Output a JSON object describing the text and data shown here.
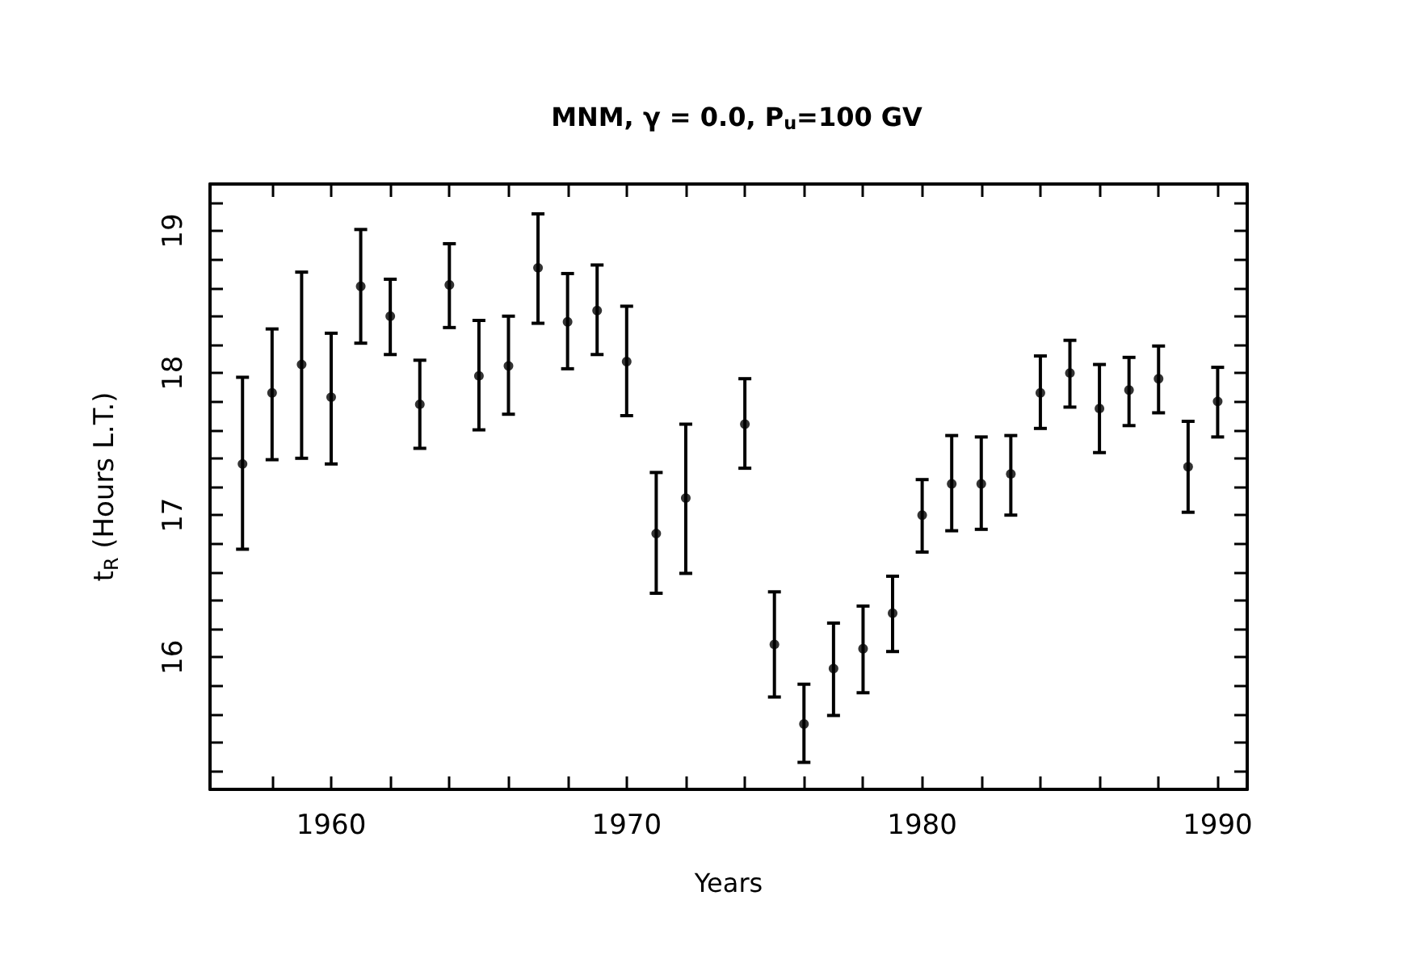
{
  "chart_data": {
    "type": "scatter",
    "title": "MNM, γ = 0.0, P$_{u}$=100 GV",
    "xlabel": "Years",
    "ylabel": "t$_{R}$ (Hours L.T.)",
    "x": [
      1957,
      1958,
      1959,
      1960,
      1961,
      1962,
      1963,
      1964,
      1965,
      1966,
      1967,
      1968,
      1969,
      1970,
      1971,
      1972,
      1974,
      1975,
      1976,
      1977,
      1978,
      1979,
      1980,
      1981,
      1982,
      1983,
      1984,
      1985,
      1986,
      1987,
      1988,
      1989,
      1990
    ],
    "values": [
      17.36,
      17.86,
      18.06,
      17.83,
      18.61,
      18.4,
      17.78,
      18.62,
      17.98,
      18.05,
      18.74,
      18.36,
      18.44,
      18.08,
      16.87,
      17.12,
      17.64,
      16.09,
      15.53,
      15.92,
      16.06,
      16.31,
      17.0,
      17.22,
      17.22,
      17.29,
      17.86,
      18.0,
      17.75,
      17.88,
      17.96,
      17.34,
      17.8
    ],
    "errors": [
      [
        16.76,
        17.97
      ],
      [
        17.39,
        18.31
      ],
      [
        17.4,
        18.71
      ],
      [
        17.36,
        18.28
      ],
      [
        18.21,
        19.01
      ],
      [
        18.13,
        18.66
      ],
      [
        17.47,
        18.09
      ],
      [
        18.32,
        18.91
      ],
      [
        17.6,
        18.37
      ],
      [
        17.71,
        18.4
      ],
      [
        18.35,
        19.12
      ],
      [
        18.03,
        18.7
      ],
      [
        18.13,
        18.76
      ],
      [
        17.7,
        18.47
      ],
      [
        16.45,
        17.3
      ],
      [
        16.59,
        17.64
      ],
      [
        17.33,
        17.96
      ],
      [
        15.72,
        16.46
      ],
      [
        15.26,
        15.81
      ],
      [
        15.59,
        16.24
      ],
      [
        15.75,
        16.36
      ],
      [
        16.04,
        16.57
      ],
      [
        16.74,
        17.25
      ],
      [
        16.89,
        17.56
      ],
      [
        16.9,
        17.55
      ],
      [
        17.0,
        17.56
      ],
      [
        17.61,
        18.12
      ],
      [
        17.76,
        18.23
      ],
      [
        17.44,
        18.06
      ],
      [
        17.63,
        18.11
      ],
      [
        17.72,
        18.19
      ],
      [
        17.02,
        17.66
      ],
      [
        17.55,
        18.04
      ]
    ],
    "color": "#000000",
    "marker": "circle",
    "grid": false,
    "legend": false,
    "xlim": [
      1955.9,
      1991
    ],
    "xticks": [
      {
        "value": 1958,
        "label": null
      },
      1960,
      {
        "value": 1962,
        "label": null
      },
      {
        "value": 1964,
        "label": null
      },
      {
        "value": 1966,
        "label": null
      },
      {
        "value": 1968,
        "label": null
      },
      1970,
      {
        "value": 1972,
        "label": null
      },
      {
        "value": 1974,
        "label": null
      },
      {
        "value": 1976,
        "label": null
      },
      {
        "value": 1978,
        "label": null
      },
      1980,
      {
        "value": 1982,
        "label": null
      },
      {
        "value": 1984,
        "label": null
      },
      {
        "value": 1986,
        "label": null
      },
      {
        "value": 1988,
        "label": null
      },
      1990
    ],
    "ylim": [
      15.07,
      19.33
    ],
    "yticks": [
      {
        "value": 15.2,
        "label": null
      },
      {
        "value": 15.4,
        "label": null
      },
      {
        "value": 15.6,
        "label": null
      },
      {
        "value": 15.8,
        "label": null
      },
      16,
      {
        "value": 16.2,
        "label": null
      },
      {
        "value": 16.4,
        "label": null
      },
      {
        "value": 16.6,
        "label": null
      },
      {
        "value": 16.8,
        "label": null
      },
      17,
      {
        "value": 17.2,
        "label": null
      },
      {
        "value": 17.4,
        "label": null
      },
      {
        "value": 17.6,
        "label": null
      },
      {
        "value": 17.8,
        "label": null
      },
      18,
      {
        "value": 18.2,
        "label": null
      },
      {
        "value": 18.4,
        "label": null
      },
      {
        "value": 18.6,
        "label": null
      },
      {
        "value": 18.8,
        "label": null
      },
      19,
      {
        "value": 19.2,
        "label": null
      }
    ]
  }
}
